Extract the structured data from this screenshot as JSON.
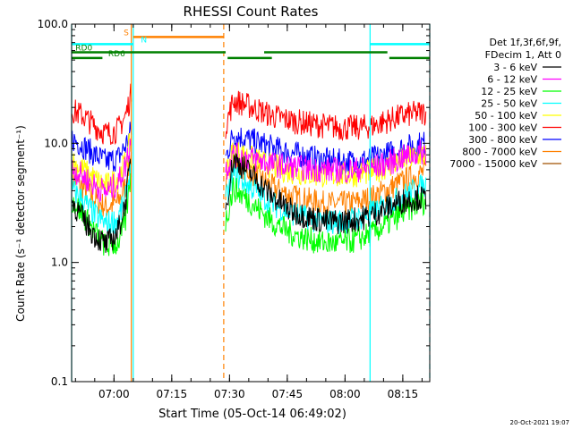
{
  "chart_data": {
    "type": "line",
    "title": "RHESSI Count Rates",
    "xlabel": "Start Time (05-Oct-14 06:49:02)",
    "ylabel": "Count Rate (s⁻¹ detector segment⁻¹)",
    "y_scale": "log",
    "ylim": [
      0.1,
      100.0
    ],
    "xlim_minutes_after_0649": [
      0,
      93
    ],
    "y_ticks": [
      {
        "value": 0.1,
        "label": "0.1"
      },
      {
        "value": 1.0,
        "label": "1.0"
      },
      {
        "value": 10.0,
        "label": "10.0"
      },
      {
        "value": 100.0,
        "label": "100.0"
      }
    ],
    "x_ticks": [
      {
        "label": "07:00",
        "minute": 11
      },
      {
        "label": "07:15",
        "minute": 26
      },
      {
        "label": "07:30",
        "minute": 41
      },
      {
        "label": "07:45",
        "minute": 56
      },
      {
        "label": "08:00",
        "minute": 71
      },
      {
        "label": "08:15",
        "minute": 86
      }
    ],
    "legend_header": [
      "Det 1f,3f,6f,9f,",
      "FDecim 1, Att 0"
    ],
    "legend_position": "right",
    "series": [
      {
        "name": "3 - 6 keV",
        "color": "#000000",
        "segments": [
          {
            "x": [
              0,
              3,
              6,
              9,
              12,
              14,
              15.5
            ],
            "y": [
              3.3,
              2.3,
              1.7,
              1.4,
              1.8,
              3.2,
              8.0
            ]
          },
          {
            "x": [
              40,
              42,
              47,
              52,
              57,
              62,
              66,
              70,
              74,
              78,
              82,
              86,
              90,
              92
            ],
            "y": [
              2.8,
              7.5,
              5.4,
              3.6,
              2.7,
              2.4,
              2.2,
              2.2,
              2.3,
              2.5,
              2.9,
              3.3,
              3.5,
              3.4
            ]
          }
        ]
      },
      {
        "name": "6 - 12 keV",
        "color": "#ff00ff",
        "segments": [
          {
            "x": [
              0,
              3,
              6,
              9,
              12,
              14,
              15.5
            ],
            "y": [
              6.2,
              5.3,
              4.4,
              3.9,
              4.6,
              6.5,
              11
            ]
          },
          {
            "x": [
              40,
              42,
              47,
              52,
              57,
              62,
              66,
              70,
              74,
              78,
              82,
              86,
              90,
              92
            ],
            "y": [
              6.0,
              8.0,
              7.4,
              6.7,
              6.3,
              6.1,
              6.0,
              5.9,
              6.0,
              6.2,
              6.8,
              7.6,
              8.3,
              8.5
            ]
          }
        ]
      },
      {
        "name": "12 - 25 keV",
        "color": "#00ff00",
        "segments": [
          {
            "x": [
              0,
              3,
              6,
              9,
              12,
              14,
              15.5
            ],
            "y": [
              3.4,
              2.5,
              1.8,
              1.35,
              1.45,
              2.2,
              6.0
            ]
          },
          {
            "x": [
              40,
              42,
              47,
              52,
              57,
              62,
              66,
              70,
              74,
              78,
              82,
              86,
              90,
              92
            ],
            "y": [
              2.2,
              4.2,
              3.1,
              2.2,
              1.75,
              1.55,
              1.45,
              1.45,
              1.55,
              1.75,
              2.1,
              2.6,
              3.1,
              3.3
            ]
          }
        ]
      },
      {
        "name": "25 - 50 keV",
        "color": "#00ffff",
        "segments": [
          {
            "x": [
              0,
              3,
              6,
              9,
              12,
              14,
              15.5
            ],
            "y": [
              4.2,
              3.3,
              2.5,
              2.1,
              2.3,
              3.4,
              7.0
            ]
          },
          {
            "x": [
              40,
              42,
              47,
              52,
              57,
              62,
              66,
              70,
              74,
              78,
              82,
              86,
              90,
              92
            ],
            "y": [
              3.2,
              5.5,
              4.2,
              3.1,
              2.6,
              2.3,
              2.2,
              2.2,
              2.3,
              2.6,
              3.0,
              3.6,
              4.2,
              4.4
            ]
          }
        ]
      },
      {
        "name": "50 - 100 keV",
        "color": "#ffff00",
        "segments": [
          {
            "x": [
              0,
              3,
              6,
              9,
              12,
              14,
              15.5
            ],
            "y": [
              7.0,
              6.0,
              5.0,
              4.4,
              5.0,
              7.0,
              11
            ]
          },
          {
            "x": [
              40,
              42,
              47,
              52,
              57,
              62,
              66,
              70,
              74,
              78,
              82,
              86,
              90,
              92
            ],
            "y": [
              5.8,
              8.6,
              7.4,
              6.4,
              5.8,
              5.5,
              5.4,
              5.4,
              5.5,
              5.8,
              6.4,
              7.2,
              7.9,
              8.1
            ]
          }
        ]
      },
      {
        "name": "100 - 300 keV",
        "color": "#ff0000",
        "segments": [
          {
            "x": [
              0,
              3,
              6,
              9,
              12,
              14,
              15.5
            ],
            "y": [
              19,
              17,
              14,
              12,
              13,
              17,
              26
            ]
          },
          {
            "x": [
              40,
              42,
              47,
              52,
              57,
              62,
              66,
              70,
              74,
              78,
              82,
              86,
              90,
              92
            ],
            "y": [
              14,
              23,
              20,
              17,
              15.5,
              14.5,
              14,
              13.5,
              13.5,
              14,
              15.5,
              17,
              18,
              18
            ]
          }
        ]
      },
      {
        "name": "300 - 800 keV",
        "color": "#0000ff",
        "segments": [
          {
            "x": [
              0,
              3,
              6,
              9,
              12,
              14,
              15.5
            ],
            "y": [
              11,
              9.5,
              8.0,
              7.0,
              7.5,
              9.5,
              13
            ]
          },
          {
            "x": [
              40,
              42,
              47,
              52,
              57,
              62,
              66,
              70,
              74,
              78,
              82,
              86,
              90,
              92
            ],
            "y": [
              7.5,
              12,
              10.5,
              9.2,
              8.3,
              7.6,
              7.2,
              7.0,
              7.0,
              7.4,
              8.1,
              9.1,
              9.8,
              10
            ]
          }
        ]
      },
      {
        "name": "800 - 7000 keV",
        "color": "#ff8000",
        "segments": [
          {
            "x": [
              0,
              3,
              6,
              9,
              12,
              14,
              15.5
            ],
            "y": [
              5.2,
              4.2,
              3.4,
              2.9,
              3.2,
              4.4,
              8.0
            ]
          },
          {
            "x": [
              40,
              42,
              47,
              52,
              57,
              62,
              66,
              70,
              74,
              78,
              82,
              86,
              90,
              92
            ],
            "y": [
              4.0,
              7.2,
              5.6,
              4.3,
              3.6,
              3.3,
              3.1,
              3.1,
              3.2,
              3.5,
              4.1,
              4.8,
              5.5,
              5.8
            ]
          }
        ]
      },
      {
        "name": "7000 - 15000 keV",
        "color": "#a05000",
        "segments": []
      }
    ],
    "vertical_markers": [
      {
        "minute": 0,
        "color": "#00ffff",
        "style": "solid"
      },
      {
        "minute": 16,
        "color": "#00ffff",
        "style": "solid"
      },
      {
        "minute": 15.5,
        "color": "#ff8000",
        "style": "solid"
      },
      {
        "minute": 39.5,
        "color": "#ff8000",
        "style": "dashed"
      },
      {
        "minute": 77.5,
        "color": "#00ffff",
        "style": "solid"
      },
      {
        "minute": 93,
        "color": "#00ffff",
        "style": "dashed"
      }
    ],
    "flag_bars": [
      {
        "color": "#ff8000",
        "y": 78,
        "spans": [
          [
            16,
            39.5
          ]
        ],
        "label": "S",
        "label_minute": 13.5
      },
      {
        "color": "#00ffff",
        "y": 68,
        "spans": [
          [
            0,
            16
          ],
          [
            77.5,
            93
          ]
        ],
        "label": "N",
        "label_minute": 18
      },
      {
        "color": "#008000",
        "y": 58,
        "spans": [
          [
            0,
            40
          ],
          [
            50,
            82
          ]
        ],
        "label": "RD0",
        "label_minute": 1
      },
      {
        "color": "#008000",
        "y": 52,
        "spans": [
          [
            0,
            8
          ],
          [
            40.5,
            52
          ],
          [
            82.5,
            93
          ]
        ],
        "label": "RD6",
        "label_minute": 9.5
      }
    ]
  },
  "footer": {
    "date_stamp": "20-Oct-2021 19:07"
  }
}
